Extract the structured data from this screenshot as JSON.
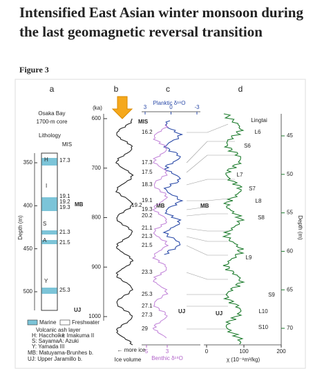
{
  "header": {
    "title": "Intensified East Asian winter monsoon during the last geomagnetic reversal transition"
  },
  "figure": {
    "label": "Figure 3",
    "panel_a": {
      "letter": "a",
      "site": "Osaka Bay",
      "core": "1700-m core",
      "lithology": "Lithology",
      "mis": "MIS",
      "axis_label": "Depth (m)",
      "depth_ticks": [
        350,
        400,
        450,
        500
      ],
      "ash_labels": [
        "H",
        "I",
        "S",
        "A",
        "Y"
      ],
      "mis_labels": [
        "17.3",
        "19.1",
        "19.2",
        "19.3",
        "21.3",
        "21.5",
        "25.3"
      ],
      "mb": "MB",
      "uj": "UJ",
      "legend": [
        "Marine",
        "Freshwater",
        "Volcanic ash layer",
        "H: Hacchoike",
        "I: Imakuma II",
        "S: Sayama",
        "A: Azuki",
        "Y: Yamada III",
        "MB: Matuyama-Brunhes b.",
        "UJ: Upper Jaramillo b."
      ]
    },
    "panel_b": {
      "letter": "b",
      "axis_unit": "(ka)",
      "age_ticks": [
        600,
        700,
        800,
        900,
        1000
      ],
      "note": "← more ice",
      "axis_label": "Ice volume"
    },
    "panel_c": {
      "letter": "c",
      "top_axis_label": "Planktic δ¹⁸O",
      "top_ticks": [
        3,
        0,
        -3
      ],
      "mis": "MIS",
      "mis_labels": [
        "16.2",
        "17.3",
        "17.5",
        "18.3",
        "19.1",
        "19.2",
        "19.3",
        "20.2",
        "21.1",
        "21.3",
        "21.5",
        "23.3",
        "25.3",
        "27.1",
        "27.3",
        "29"
      ],
      "mb": "MB",
      "uj": "UJ",
      "bottom_ticks": [
        5,
        3
      ],
      "bottom_axis_label": "Benthic δ¹⁸O"
    },
    "panel_d": {
      "letter": "d",
      "site": "Lingtai",
      "units": [
        "L6",
        "S6",
        "L7",
        "S7",
        "L8",
        "S8",
        "L9",
        "S9",
        "L10",
        "S10"
      ],
      "mb": "MB",
      "uj": "UJ",
      "depth_ticks": [
        45,
        50,
        55,
        60,
        65,
        70
      ],
      "axis_label": "Depth (m)",
      "x_ticks": [
        0,
        100,
        200
      ],
      "x_axis_label": "χ (10⁻⁸m³/kg)"
    }
  }
}
